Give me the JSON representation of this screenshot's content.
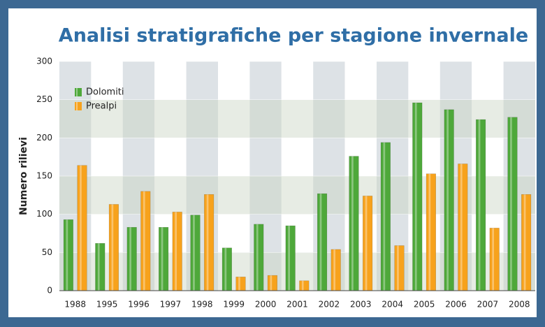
{
  "chart_data": {
    "type": "bar",
    "title": "Analisi stratigrafiche per stagione invernale",
    "y_label": "Numero rilievi",
    "categories": [
      "1988",
      "1995",
      "1996",
      "1997",
      "1998",
      "1999",
      "2000",
      "2001",
      "2002",
      "2003",
      "2004",
      "2005",
      "2006",
      "2007",
      "2008"
    ],
    "series": [
      {
        "name": "Dolomiti",
        "color": "#4ea83a",
        "values": [
          93,
          62,
          83,
          83,
          99,
          56,
          87,
          85,
          127,
          176,
          194,
          246,
          237,
          224,
          227
        ]
      },
      {
        "name": "Prealpi",
        "color": "#f7a21c",
        "values": [
          164,
          113,
          130,
          103,
          126,
          18,
          20,
          13,
          54,
          124,
          59,
          153,
          166,
          82,
          126
        ]
      }
    ],
    "ylim": [
      0,
      300
    ],
    "yticks": [
      0,
      50,
      100,
      150,
      200,
      250,
      300
    ],
    "grid": true,
    "legend": "upper left"
  }
}
